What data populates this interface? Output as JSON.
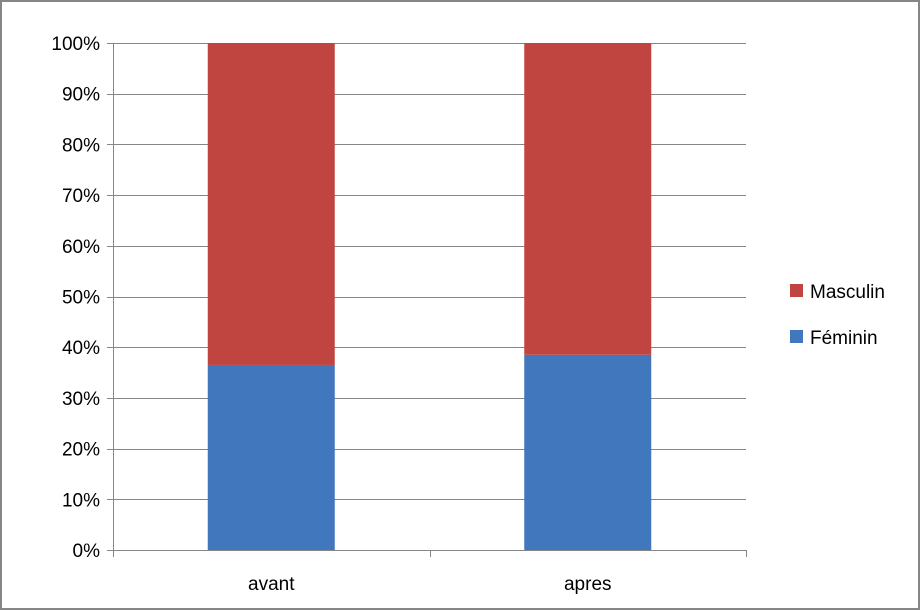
{
  "chart_data": {
    "type": "bar",
    "stacked": true,
    "normalized": true,
    "categories": [
      "avant",
      "apres"
    ],
    "series": [
      {
        "name": "Féminin",
        "values": [
          36.5,
          38.5
        ],
        "color": "#4177BC"
      },
      {
        "name": "Masculin",
        "values": [
          63.5,
          61.5
        ],
        "color": "#C0443F"
      }
    ],
    "y_ticks": [
      "0%",
      "10%",
      "20%",
      "30%",
      "40%",
      "50%",
      "60%",
      "70%",
      "80%",
      "90%",
      "100%"
    ],
    "ylim": [
      0,
      100
    ],
    "grid": true,
    "legend_position": "right",
    "legend_order": [
      "Masculin",
      "Féminin"
    ]
  }
}
